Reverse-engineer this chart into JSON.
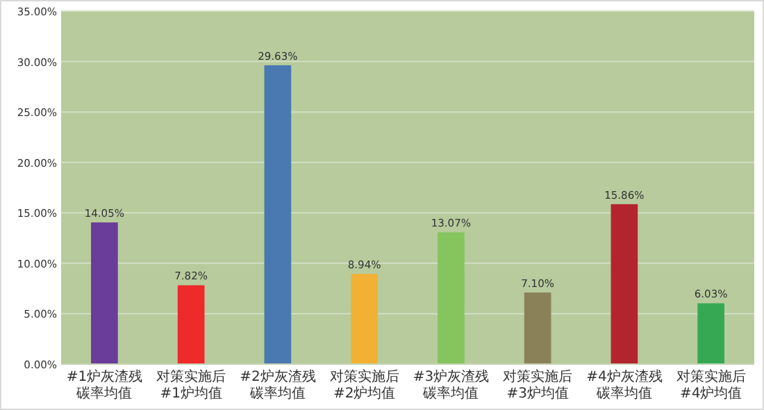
{
  "chart_data": {
    "type": "bar",
    "categories": [
      "#1炉灰渣残碳率均值",
      "对策实施后#1炉均值",
      "#2炉灰渣残碳率均值",
      "对策实施后#2炉均值",
      "#3炉灰渣残碳率均值",
      "对策实施后#3炉均值",
      "#4炉灰渣残碳率均值",
      "对策实施后#4炉均值"
    ],
    "values": [
      14.05,
      7.82,
      29.63,
      8.94,
      13.07,
      7.1,
      15.86,
      6.03
    ],
    "value_labels": [
      "14.05%",
      "7.82%",
      "29.63%",
      "8.94%",
      "13.07%",
      "7.10%",
      "15.86%",
      "6.03%"
    ],
    "colors": [
      "#6a3d9a",
      "#ee2a2a",
      "#4a78b0",
      "#f2b134",
      "#86c45e",
      "#8b8158",
      "#b2252f",
      "#36a854"
    ],
    "ylim": [
      0,
      35
    ],
    "yticks": [
      {
        "value": 0,
        "label": "0.00%"
      },
      {
        "value": 5,
        "label": "5.00%"
      },
      {
        "value": 10,
        "label": "10.00%"
      },
      {
        "value": 15,
        "label": "15.00%"
      },
      {
        "value": 20,
        "label": "20.00%"
      },
      {
        "value": 25,
        "label": "25.00%"
      },
      {
        "value": 30,
        "label": "30.00%"
      },
      {
        "value": 35,
        "label": "35.00%"
      }
    ],
    "grid": "y"
  }
}
